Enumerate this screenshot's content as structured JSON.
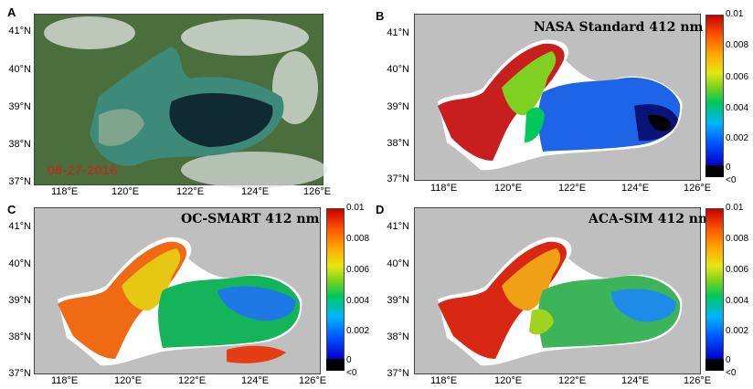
{
  "panels": [
    {
      "letter": "A",
      "title": "",
      "date": "08-27-2016"
    },
    {
      "letter": "B",
      "title": "NASA Standard 412 nm"
    },
    {
      "letter": "C",
      "title": "OC-SMART 412 nm"
    },
    {
      "letter": "D",
      "title": "ACA-SIM 412 nm"
    }
  ],
  "axes": {
    "lat_ticks": [
      "41°N",
      "40°N",
      "39°N",
      "38°N",
      "37°N"
    ],
    "lon_ticks": [
      "118°E",
      "120°E",
      "122°E",
      "124°E",
      "126°E"
    ]
  },
  "colorbar": {
    "ticks": [
      "0.01",
      "0.008",
      "0.006",
      "0.004",
      "0.002",
      "0",
      "<0"
    ]
  },
  "colors": {
    "land": "#bfbfbf",
    "frame": "#444444",
    "date_text": "#e01818"
  }
}
